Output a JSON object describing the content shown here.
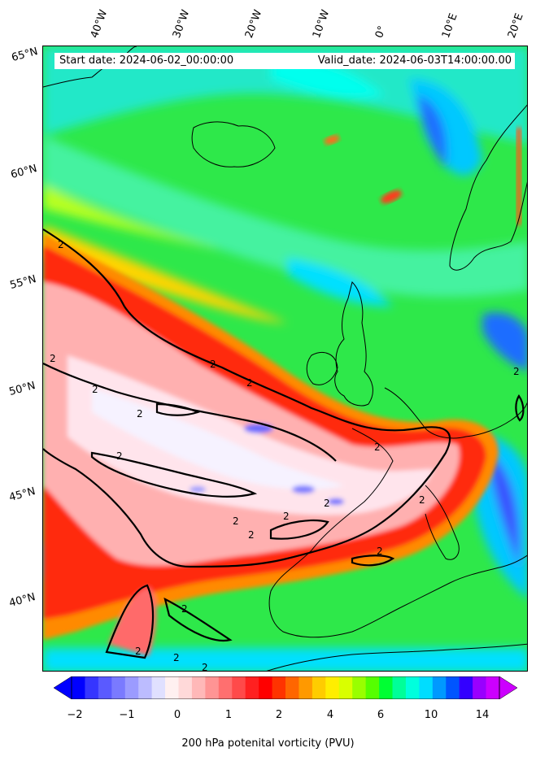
{
  "header": {
    "start_date": "Start date: 2024-06-02_00:00:00",
    "valid_date": "Valid_date: 2024-06-03T14:00:00.00"
  },
  "longitude_labels": [
    "40°W",
    "30°W",
    "20°W",
    "10°W",
    "0°",
    "10°E",
    "20°E"
  ],
  "latitude_labels": [
    "65°N",
    "60°N",
    "55°N",
    "50°N",
    "45°N",
    "40°N"
  ],
  "contour_label": "2",
  "colorbar": {
    "title": "200 hPa potenital vorticity (PVU)",
    "ticks": [
      "−2",
      "−1",
      "0",
      "1",
      "2",
      "4",
      "6",
      "10",
      "14"
    ],
    "colors": [
      "#0000ff",
      "#3535ff",
      "#5a5aff",
      "#7a7aff",
      "#9b9bff",
      "#bcbcff",
      "#e0e0ff",
      "#fff0f0",
      "#ffd9d9",
      "#ffb8b8",
      "#ff9494",
      "#ff6f6f",
      "#ff4a4a",
      "#ff2020",
      "#ff0000",
      "#ff3300",
      "#ff6600",
      "#ff9900",
      "#ffcc00",
      "#ffee00",
      "#d9ff00",
      "#99ff00",
      "#55ff00",
      "#00ff33",
      "#00ff99",
      "#00ffdd",
      "#00ddff",
      "#0099ff",
      "#0055ff",
      "#3300ff",
      "#9900ff",
      "#cc00ff"
    ],
    "extend_low_color": "#0000ff",
    "extend_high_color": "#cc00ff"
  }
}
